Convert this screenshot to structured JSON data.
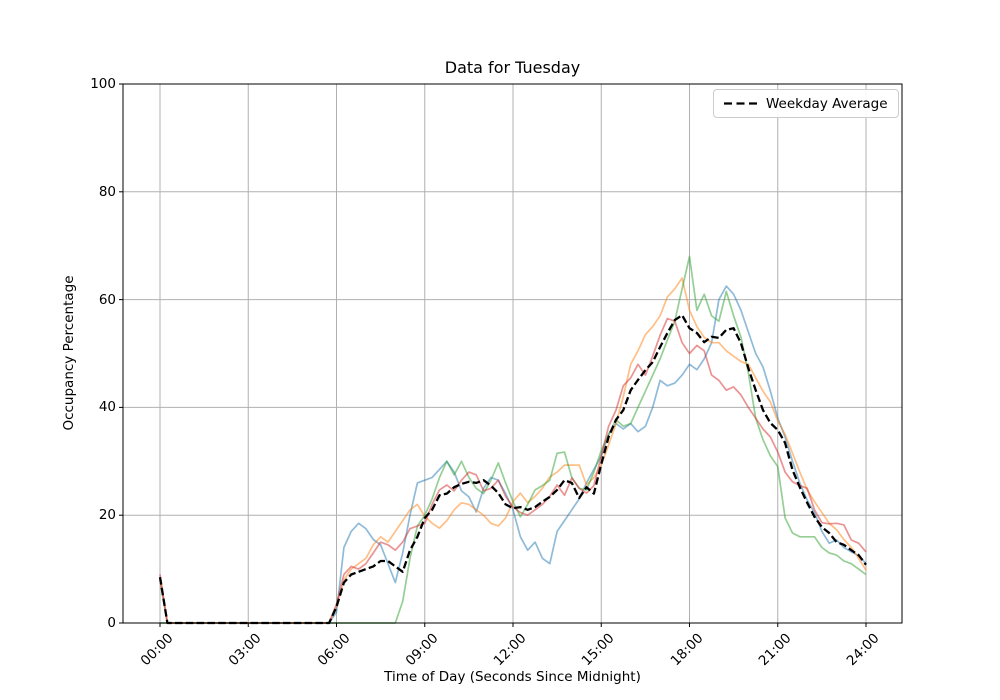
{
  "chart_data": {
    "type": "line",
    "title": "Data for Tuesday",
    "xlabel": "Time of Day (Seconds Since Midnight)",
    "ylabel": "Occupancy Percentage",
    "ylim": [
      0,
      100
    ],
    "x_hours_range": [
      0,
      24
    ],
    "x_step_hours": 0.25,
    "grid": true,
    "grid_color": "#b0b0b0",
    "spine_color": "#000000",
    "y_ticks": [
      0,
      20,
      40,
      60,
      80,
      100
    ],
    "x_ticks": [
      {
        "hour": 0,
        "label": "00:00"
      },
      {
        "hour": 3,
        "label": "03:00"
      },
      {
        "hour": 6,
        "label": "06:00"
      },
      {
        "hour": 9,
        "label": "09:00"
      },
      {
        "hour": 12,
        "label": "12:00"
      },
      {
        "hour": 15,
        "label": "15:00"
      },
      {
        "hour": 18,
        "label": "18:00"
      },
      {
        "hour": 21,
        "label": "21:00"
      },
      {
        "hour": 24,
        "label": "24:00"
      }
    ],
    "legend": {
      "position": "upper right",
      "entries": [
        {
          "label": "Weekday Average",
          "color": "#000000",
          "dashed": true
        }
      ]
    },
    "series": [
      {
        "name": "tuesday-sample-blue",
        "label": "",
        "color": "#1f77b4",
        "alpha": 0.5,
        "dashed": false,
        "width": 1.7,
        "values": [
          8,
          0,
          0,
          0,
          0,
          0,
          0,
          0,
          0,
          0,
          0,
          0,
          0,
          0,
          0,
          0,
          0,
          0,
          0,
          0,
          0,
          0,
          0,
          0,
          2,
          14,
          17,
          18.5,
          17.5,
          15.5,
          14.5,
          11,
          7.5,
          13,
          20,
          26,
          26.5,
          27,
          28.5,
          30,
          28,
          24.5,
          23.4,
          20.6,
          25,
          27,
          26.5,
          24,
          21,
          16,
          13.5,
          15,
          12,
          11,
          17,
          19,
          21,
          23,
          26,
          28.5,
          31,
          35,
          37,
          36,
          37,
          35.5,
          36.5,
          40,
          45,
          44,
          44.5,
          46,
          48,
          47,
          49,
          52,
          60,
          62.5,
          61,
          58,
          54,
          50,
          47.5,
          43,
          38,
          34.5,
          30,
          26,
          22.8,
          20.5,
          17,
          14.8,
          15.4,
          14,
          13.2,
          12.5,
          11
        ]
      },
      {
        "name": "tuesday-sample-orange",
        "label": "",
        "color": "#ff7f0e",
        "alpha": 0.5,
        "dashed": false,
        "width": 1.7,
        "values": [
          8,
          0,
          0,
          0,
          0,
          0,
          0,
          0,
          0,
          0,
          0,
          0,
          0,
          0,
          0,
          0,
          0,
          0,
          0,
          0,
          0,
          0,
          0,
          0,
          3,
          8,
          10,
          11,
          12,
          14.5,
          16,
          15,
          17,
          19,
          21,
          22,
          19.8,
          18.5,
          17.6,
          19,
          21,
          22.3,
          22,
          21,
          20,
          18.5,
          18,
          19.5,
          22.5,
          24.1,
          22.3,
          23.5,
          25,
          27.1,
          28,
          29.3,
          29.3,
          29.3,
          25.6,
          27,
          29.3,
          33,
          37,
          42,
          48,
          50.5,
          53.5,
          55,
          57,
          60.5,
          62,
          64,
          58,
          55,
          53,
          52,
          52,
          50.5,
          49.5,
          48.5,
          48,
          45.5,
          43,
          41,
          37.5,
          35,
          31.5,
          28,
          24.7,
          22.5,
          20.5,
          18.5,
          17.3,
          15.5,
          14,
          12,
          9.8
        ]
      },
      {
        "name": "tuesday-sample-green",
        "label": "",
        "color": "#2ca02c",
        "alpha": 0.5,
        "dashed": false,
        "width": 1.7,
        "values": [
          0,
          0,
          0,
          0,
          0,
          0,
          0,
          0,
          0,
          0,
          0,
          0,
          0,
          0,
          0,
          0,
          0,
          0,
          0,
          0,
          0,
          0,
          0,
          0,
          0,
          0,
          0,
          0,
          0,
          0,
          0,
          0,
          0,
          4,
          12,
          18,
          20,
          23,
          27,
          30,
          27.5,
          30,
          27,
          25,
          24,
          26.5,
          29.7,
          26,
          22.5,
          19.7,
          22,
          24.7,
          25.5,
          26.5,
          31.5,
          31.7,
          27,
          25,
          24.7,
          28,
          32,
          35,
          37.7,
          36.5,
          37,
          40,
          43,
          46,
          49,
          52.5,
          56,
          62,
          68,
          58,
          61,
          57,
          56,
          61.5,
          57,
          53,
          46.5,
          38,
          34,
          31,
          29,
          19.5,
          16.7,
          16,
          16,
          16,
          14,
          13,
          12.6,
          11.5,
          11,
          10,
          9
        ]
      },
      {
        "name": "tuesday-sample-red",
        "label": "",
        "color": "#d62728",
        "alpha": 0.5,
        "dashed": false,
        "width": 1.7,
        "values": [
          9,
          0,
          0,
          0,
          0,
          0,
          0,
          0,
          0,
          0,
          0,
          0,
          0,
          0,
          0,
          0,
          0,
          0,
          0,
          0,
          0,
          0,
          0,
          0,
          3.5,
          9,
          10.5,
          10,
          11,
          13,
          15,
          14.5,
          13.5,
          15,
          17.5,
          18,
          18.5,
          22,
          24.7,
          25.6,
          24.5,
          26.5,
          28,
          27.5,
          24.5,
          25,
          26.5,
          23.5,
          21.5,
          20.5,
          20,
          21,
          22,
          23.5,
          25.6,
          23.7,
          26.9,
          25,
          24.1,
          25.5,
          31,
          36.5,
          39.5,
          44,
          45.5,
          48,
          46,
          49.5,
          53.4,
          56.5,
          56,
          52,
          50,
          51.5,
          50.5,
          46,
          45,
          43.2,
          43.8,
          42.3,
          40,
          38,
          36,
          34.5,
          31.7,
          28,
          26.2,
          25.5,
          25,
          21,
          18.6,
          18.4,
          18.5,
          18.2,
          15.4,
          14.8,
          13.2
        ]
      },
      {
        "name": "weekday-average",
        "label": "Weekday Average",
        "color": "#000000",
        "alpha": 1,
        "dashed": true,
        "width": 2.3,
        "values": [
          8.5,
          0,
          0,
          0,
          0,
          0,
          0,
          0,
          0,
          0,
          0,
          0,
          0,
          0,
          0,
          0,
          0,
          0,
          0,
          0,
          0,
          0,
          0,
          0,
          3,
          7.5,
          9,
          9.5,
          10,
          10.5,
          11.5,
          11.5,
          10.5,
          9.5,
          13.5,
          16,
          19.5,
          21,
          23.7,
          24,
          25.2,
          25.8,
          26.2,
          26,
          26.5,
          25.5,
          24.1,
          22,
          21.3,
          21.5,
          21,
          21.5,
          22.5,
          23.4,
          24.7,
          26.5,
          26,
          23.2,
          25.2,
          24,
          29.5,
          34.5,
          37.7,
          39.5,
          43.2,
          45.1,
          46.9,
          48.4,
          51.2,
          53.8,
          56.2,
          57.1,
          54.7,
          53.8,
          52.1,
          53.1,
          52.9,
          54.4,
          54.7,
          51.9,
          47.3,
          43.2,
          39.5,
          37.1,
          35.8,
          33.4,
          28.4,
          25.2,
          22.3,
          19.7,
          17.8,
          16.7,
          15,
          14.5,
          13.5,
          12.6,
          10.8
        ]
      }
    ]
  }
}
